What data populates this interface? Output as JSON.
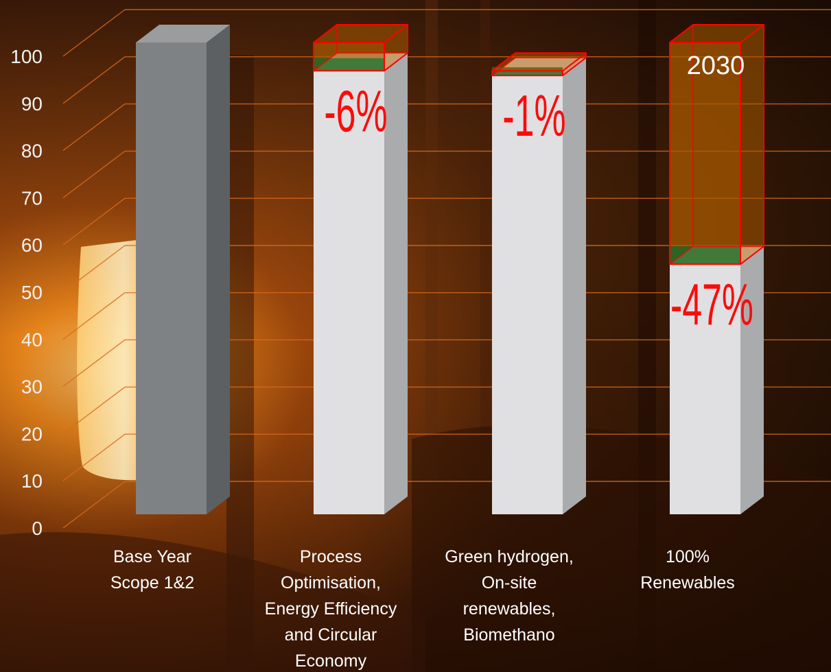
{
  "chart_data": {
    "type": "bar",
    "title": "",
    "xlabel": "",
    "ylabel": "",
    "ylim": [
      0,
      100
    ],
    "yticks": [
      0,
      10,
      20,
      30,
      40,
      50,
      60,
      70,
      80,
      90,
      100
    ],
    "grid": true,
    "year_label": "2030",
    "categories": [
      [
        "Base Year",
        "Scope 1&2"
      ],
      [
        "Process",
        "Optimisation,",
        "Energy Efficiency",
        "and Circular",
        "Economy"
      ],
      [
        "Green hydrogen,",
        "On-site",
        "renewables,",
        "Biomethano"
      ],
      [
        "100%",
        "Renewables"
      ]
    ],
    "bars": [
      {
        "value": 100,
        "reduction": null,
        "reduction_label": ""
      },
      {
        "value": 94,
        "reduction": 6,
        "reduction_label": "-6%"
      },
      {
        "value": 93,
        "reduction": 1,
        "reduction_label": "-1%"
      },
      {
        "value": 53,
        "reduction": 47,
        "reduction_label": "-47%"
      }
    ],
    "colors": {
      "base_bar": "#7f8284",
      "reduction_bars": "#e0e0e2",
      "reduction_box": "#ff0000",
      "reduction_fill_top": "#a85a00",
      "reduction_fill_bottom": "#2f6b25",
      "labels": "#ff0a0a",
      "gridlines": "#d96a1e"
    }
  }
}
